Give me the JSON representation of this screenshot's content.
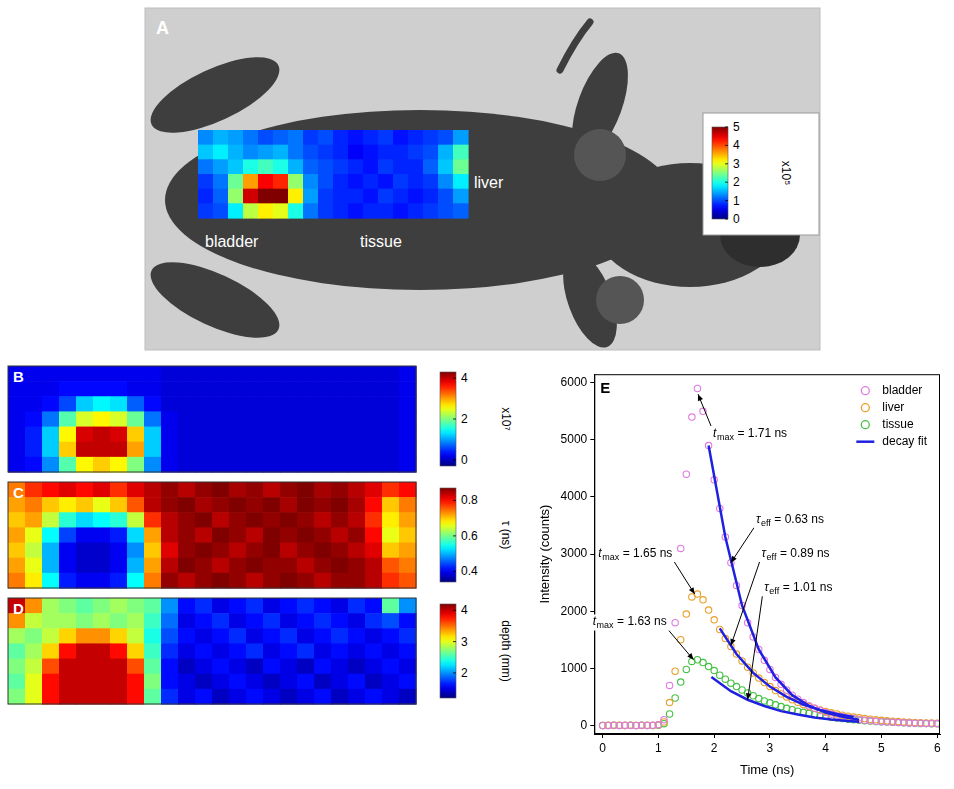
{
  "chart_data": [
    {
      "panel": "A",
      "type": "heatmap",
      "cells": [
        [
          1.3,
          1.5,
          1.4,
          1.2,
          1.0,
          1.1,
          1.2,
          0.9,
          1.0,
          0.8,
          0.7,
          0.8,
          0.9,
          0.7,
          0.8,
          0.9,
          1.0,
          1.4
        ],
        [
          1.6,
          1.8,
          1.5,
          1.3,
          1.4,
          1.5,
          1.2,
          1.0,
          0.9,
          0.8,
          0.6,
          0.7,
          0.8,
          0.8,
          0.9,
          1.0,
          1.5,
          2.2
        ],
        [
          1.2,
          1.4,
          1.6,
          2.0,
          2.2,
          2.0,
          1.5,
          1.1,
          1.0,
          0.9,
          0.8,
          0.7,
          0.9,
          0.8,
          0.8,
          1.1,
          1.6,
          2.4
        ],
        [
          0.9,
          1.2,
          2.4,
          3.6,
          4.4,
          4.2,
          2.6,
          1.3,
          1.0,
          0.8,
          0.7,
          0.8,
          0.7,
          0.9,
          0.8,
          0.9,
          1.3,
          1.8
        ],
        [
          0.8,
          1.1,
          2.6,
          4.6,
          5.0,
          5.0,
          3.2,
          1.4,
          0.9,
          0.8,
          0.8,
          0.7,
          0.9,
          0.8,
          0.7,
          0.8,
          1.0,
          1.4
        ],
        [
          0.9,
          1.0,
          1.8,
          2.8,
          3.2,
          3.0,
          2.0,
          1.2,
          0.9,
          0.8,
          0.7,
          0.8,
          0.8,
          0.7,
          0.8,
          0.9,
          1.0,
          1.1
        ]
      ],
      "colorbar": {
        "range": [
          0,
          5
        ],
        "ticks": [
          0,
          1,
          2,
          3,
          4,
          5
        ],
        "label": "x10⁵"
      },
      "labels": [
        "bladder",
        "tissue",
        "liver"
      ]
    },
    {
      "panel": "B",
      "type": "heatmap",
      "cells": [
        [
          0.2,
          0.2,
          0.2,
          0.2,
          0.2,
          0.2,
          0.2,
          0.2,
          0.2,
          0.1,
          0.1,
          0.1,
          0.1,
          0.1,
          0.1,
          0.1,
          0.1,
          0.1,
          0.1,
          0.1,
          0.1,
          0.1,
          0.1,
          0.2
        ],
        [
          0.2,
          0.2,
          0.2,
          0.3,
          0.3,
          0.3,
          0.3,
          0.2,
          0.2,
          0.1,
          0.1,
          0.1,
          0.1,
          0.1,
          0.1,
          0.1,
          0.1,
          0.1,
          0.1,
          0.1,
          0.1,
          0.1,
          0.1,
          0.2
        ],
        [
          0.2,
          0.2,
          0.3,
          0.6,
          1.2,
          1.4,
          1.3,
          0.7,
          0.3,
          0.1,
          0.1,
          0.1,
          0.1,
          0.1,
          0.1,
          0.1,
          0.1,
          0.1,
          0.1,
          0.1,
          0.1,
          0.1,
          0.1,
          0.2
        ],
        [
          0.2,
          0.3,
          0.8,
          1.8,
          2.4,
          2.6,
          2.4,
          1.9,
          0.8,
          0.2,
          0.1,
          0.1,
          0.1,
          0.1,
          0.1,
          0.1,
          0.1,
          0.1,
          0.1,
          0.1,
          0.1,
          0.1,
          0.1,
          0.2
        ],
        [
          0.2,
          0.4,
          1.2,
          2.6,
          3.9,
          4.0,
          3.9,
          2.8,
          1.2,
          0.2,
          0.1,
          0.1,
          0.1,
          0.1,
          0.1,
          0.1,
          0.1,
          0.1,
          0.1,
          0.1,
          0.1,
          0.1,
          0.1,
          0.2
        ],
        [
          0.2,
          0.4,
          1.2,
          2.8,
          4.0,
          4.0,
          4.0,
          3.0,
          1.2,
          0.2,
          0.1,
          0.1,
          0.1,
          0.1,
          0.1,
          0.1,
          0.1,
          0.1,
          0.1,
          0.1,
          0.1,
          0.1,
          0.1,
          0.2
        ],
        [
          0.2,
          0.3,
          0.9,
          1.8,
          2.6,
          2.8,
          2.6,
          2.0,
          0.9,
          0.2,
          0.1,
          0.1,
          0.1,
          0.1,
          0.1,
          0.1,
          0.1,
          0.1,
          0.1,
          0.1,
          0.1,
          0.1,
          0.1,
          0.2
        ]
      ],
      "colorbar": {
        "range": [
          -0.3,
          4.3
        ],
        "ticks": [
          0,
          2,
          4
        ],
        "label": "x10⁷"
      }
    },
    {
      "panel": "C",
      "type": "heatmap",
      "cells": [
        [
          0.74,
          0.78,
          0.8,
          0.82,
          0.8,
          0.82,
          0.78,
          0.82,
          0.84,
          0.86,
          0.84,
          0.86,
          0.88,
          0.85,
          0.86,
          0.84,
          0.86,
          0.87,
          0.85,
          0.86,
          0.84,
          0.82,
          0.78,
          0.8
        ],
        [
          0.72,
          0.74,
          0.7,
          0.68,
          0.7,
          0.66,
          0.7,
          0.76,
          0.84,
          0.86,
          0.88,
          0.85,
          0.86,
          0.88,
          0.86,
          0.88,
          0.85,
          0.87,
          0.86,
          0.88,
          0.85,
          0.8,
          0.7,
          0.74
        ],
        [
          0.7,
          0.72,
          0.64,
          0.56,
          0.52,
          0.54,
          0.56,
          0.64,
          0.78,
          0.84,
          0.86,
          0.88,
          0.84,
          0.86,
          0.88,
          0.86,
          0.88,
          0.86,
          0.84,
          0.86,
          0.84,
          0.78,
          0.68,
          0.72
        ],
        [
          0.72,
          0.66,
          0.54,
          0.44,
          0.4,
          0.4,
          0.42,
          0.52,
          0.72,
          0.84,
          0.86,
          0.84,
          0.88,
          0.86,
          0.84,
          0.87,
          0.86,
          0.88,
          0.86,
          0.84,
          0.86,
          0.8,
          0.66,
          0.7
        ],
        [
          0.7,
          0.64,
          0.5,
          0.4,
          0.38,
          0.38,
          0.4,
          0.48,
          0.7,
          0.82,
          0.86,
          0.88,
          0.86,
          0.84,
          0.86,
          0.88,
          0.84,
          0.86,
          0.88,
          0.86,
          0.84,
          0.82,
          0.7,
          0.72
        ],
        [
          0.72,
          0.66,
          0.5,
          0.4,
          0.38,
          0.38,
          0.4,
          0.5,
          0.72,
          0.84,
          0.88,
          0.86,
          0.84,
          0.86,
          0.88,
          0.86,
          0.86,
          0.84,
          0.86,
          0.88,
          0.86,
          0.84,
          0.76,
          0.74
        ],
        [
          0.74,
          0.68,
          0.54,
          0.42,
          0.4,
          0.4,
          0.42,
          0.54,
          0.74,
          0.86,
          0.84,
          0.86,
          0.88,
          0.86,
          0.84,
          0.86,
          0.88,
          0.86,
          0.84,
          0.86,
          0.86,
          0.84,
          0.78,
          0.76
        ]
      ],
      "colorbar": {
        "range": [
          0.34,
          0.87
        ],
        "ticks": [
          0.4,
          0.6,
          0.8
        ],
        "label": "τ (ns)"
      }
    },
    {
      "panel": "D",
      "type": "heatmap",
      "cells": [
        [
          4.0,
          3.4,
          2.8,
          2.7,
          2.6,
          2.7,
          2.8,
          2.7,
          2.6,
          2.0,
          1.6,
          1.7,
          1.5,
          1.6,
          1.7,
          1.5,
          1.6,
          1.7,
          1.6,
          1.5,
          1.7,
          1.6,
          2.6,
          2.0
        ],
        [
          3.4,
          2.9,
          2.8,
          2.8,
          2.7,
          2.8,
          2.7,
          2.8,
          2.5,
          1.9,
          1.5,
          1.6,
          1.7,
          1.5,
          1.6,
          1.7,
          1.5,
          1.6,
          1.7,
          1.6,
          1.5,
          1.7,
          1.8,
          1.6
        ],
        [
          2.8,
          2.7,
          2.9,
          3.2,
          3.4,
          3.4,
          3.2,
          2.9,
          2.4,
          1.8,
          1.6,
          1.5,
          1.6,
          1.7,
          1.5,
          1.6,
          1.7,
          1.5,
          1.6,
          1.7,
          1.6,
          1.5,
          1.6,
          1.7
        ],
        [
          2.6,
          2.8,
          3.2,
          3.8,
          4.0,
          4.0,
          3.8,
          3.2,
          2.5,
          1.7,
          1.5,
          1.6,
          1.5,
          1.6,
          1.7,
          1.5,
          1.6,
          1.7,
          1.5,
          1.6,
          1.5,
          1.6,
          1.5,
          1.6
        ],
        [
          2.7,
          2.9,
          3.6,
          4.0,
          4.0,
          4.0,
          4.0,
          3.6,
          2.6,
          1.6,
          1.4,
          1.5,
          1.6,
          1.5,
          1.4,
          1.6,
          1.5,
          1.4,
          1.6,
          1.5,
          1.4,
          1.5,
          1.6,
          1.5
        ],
        [
          2.6,
          3.0,
          3.8,
          4.0,
          4.0,
          4.0,
          4.0,
          3.8,
          2.7,
          1.6,
          1.5,
          1.4,
          1.5,
          1.6,
          1.5,
          1.4,
          1.5,
          1.6,
          1.4,
          1.5,
          1.6,
          1.4,
          1.5,
          1.6
        ],
        [
          2.7,
          3.0,
          3.8,
          4.0,
          4.0,
          4.0,
          4.0,
          3.8,
          2.6,
          1.7,
          1.5,
          1.6,
          1.4,
          1.5,
          1.6,
          1.5,
          1.4,
          1.5,
          1.6,
          1.4,
          1.5,
          1.6,
          1.5,
          1.4
        ]
      ],
      "colorbar": {
        "range": [
          1.2,
          4.2
        ],
        "ticks": [
          2,
          3,
          4
        ],
        "label": "depth (mm)"
      }
    },
    {
      "panel": "E",
      "type": "line",
      "x_label": "Time (ns)",
      "y_label": "Intensity (counts)",
      "xlim": [
        -0.15,
        6.05
      ],
      "xticks": [
        0,
        1,
        2,
        3,
        4,
        5,
        6
      ],
      "ylim": [
        -150,
        6150
      ],
      "yticks": [
        0,
        1000,
        2000,
        3000,
        4000,
        5000,
        6000
      ],
      "grid": false,
      "legend": "upper right",
      "x": [
        0,
        0.1,
        0.2,
        0.3,
        0.4,
        0.5,
        0.6,
        0.7,
        0.8,
        0.9,
        1.0,
        1.1,
        1.2,
        1.3,
        1.4,
        1.5,
        1.6,
        1.7,
        1.8,
        1.9,
        2.0,
        2.1,
        2.2,
        2.3,
        2.4,
        2.5,
        2.6,
        2.7,
        2.8,
        2.9,
        3.0,
        3.1,
        3.2,
        3.3,
        3.4,
        3.5,
        3.6,
        3.7,
        3.8,
        3.9,
        4.0,
        4.1,
        4.2,
        4.3,
        4.4,
        4.5,
        4.6,
        4.7,
        4.8,
        4.9,
        5.0,
        5.1,
        5.2,
        5.3,
        5.4,
        5.5,
        5.6,
        5.7,
        5.8,
        5.9,
        6.0
      ],
      "series": [
        {
          "name": "bladder",
          "color": "#e07be0",
          "marker": "circle",
          "line_style": "none",
          "values": [
            0,
            0,
            5,
            0,
            5,
            0,
            0,
            5,
            0,
            5,
            10,
            100,
            700,
            1800,
            3100,
            4400,
            5400,
            5900,
            5500,
            4900,
            4300,
            3800,
            3300,
            2850,
            2450,
            2100,
            1800,
            1550,
            1330,
            1140,
            980,
            840,
            720,
            620,
            530,
            460,
            400,
            345,
            300,
            260,
            225,
            195,
            170,
            150,
            130,
            115,
            100,
            90,
            80,
            72,
            65,
            60,
            55,
            50,
            46,
            42,
            40,
            38,
            36,
            34,
            32
          ]
        },
        {
          "name": "liver",
          "color": "#e8a028",
          "marker": "circle",
          "line_style": "none",
          "values": [
            0,
            5,
            0,
            5,
            0,
            5,
            0,
            0,
            5,
            0,
            10,
            60,
            400,
            950,
            1500,
            1950,
            2250,
            2300,
            2200,
            2020,
            1850,
            1680,
            1520,
            1380,
            1250,
            1130,
            1020,
            920,
            830,
            750,
            680,
            610,
            550,
            500,
            450,
            405,
            365,
            330,
            300,
            270,
            245,
            220,
            200,
            180,
            162,
            147,
            133,
            120,
            108,
            98,
            89,
            81,
            74,
            68,
            62,
            57,
            52,
            48,
            44,
            41,
            38
          ]
        },
        {
          "name": "tissue",
          "color": "#44c044",
          "marker": "circle",
          "line_style": "none",
          "values": [
            0,
            0,
            5,
            0,
            0,
            5,
            0,
            5,
            0,
            0,
            5,
            30,
            200,
            480,
            760,
            980,
            1120,
            1150,
            1100,
            1030,
            960,
            880,
            810,
            740,
            680,
            620,
            570,
            520,
            470,
            430,
            395,
            360,
            330,
            300,
            275,
            250,
            230,
            210,
            190,
            175,
            160,
            145,
            132,
            120,
            110,
            100,
            92,
            84,
            77,
            70,
            64,
            59,
            54,
            50,
            46,
            42,
            39,
            36,
            33,
            31,
            29
          ]
        },
        {
          "name": "decay fit",
          "color": "#2020e0",
          "marker": "none",
          "line_style": "solid",
          "x": [
            1.9,
            2.2,
            2.5,
            2.8,
            3.1,
            3.4,
            3.7,
            4.0,
            4.3,
            4.6
          ],
          "values": [
            4900,
            3300,
            2100,
            1330,
            840,
            530,
            345,
            225,
            150,
            100
          ]
        },
        {
          "name": "decay fit",
          "color": "#2020e0",
          "marker": "none",
          "line_style": "solid",
          "x": [
            2.1,
            2.4,
            2.7,
            3.0,
            3.3,
            3.6,
            3.9,
            4.2,
            4.5
          ],
          "values": [
            1700,
            1250,
            920,
            680,
            500,
            365,
            270,
            200,
            147
          ]
        },
        {
          "name": "decay fit",
          "color": "#2020e0",
          "marker": "none",
          "line_style": "solid",
          "x": [
            1.95,
            2.3,
            2.6,
            2.9,
            3.2,
            3.5,
            3.8,
            4.1,
            4.4,
            4.6
          ],
          "values": [
            850,
            600,
            450,
            340,
            250,
            190,
            140,
            105,
            78,
            65
          ]
        }
      ],
      "annotations": [
        {
          "symbol": "t",
          "subscript": "max",
          "text": "= 1.71 ns",
          "x": 1.71,
          "y": 5800
        },
        {
          "symbol": "τ",
          "subscript": "eff",
          "text": "= 0.63 ns",
          "x": 2.3,
          "y": 2850
        },
        {
          "symbol": "τ",
          "subscript": "eff",
          "text": "= 0.89 ns",
          "x": 2.3,
          "y": 1400
        },
        {
          "symbol": "τ",
          "subscript": "eff",
          "text": "= 1.01 ns",
          "x": 2.6,
          "y": 450
        },
        {
          "symbol": "t",
          "subscript": "max",
          "text": "= 1.65 ns",
          "x": 1.65,
          "y": 2300
        },
        {
          "symbol": "t",
          "subscript": "max",
          "text": "= 1.63 ns",
          "x": 1.63,
          "y": 1150
        }
      ]
    }
  ]
}
